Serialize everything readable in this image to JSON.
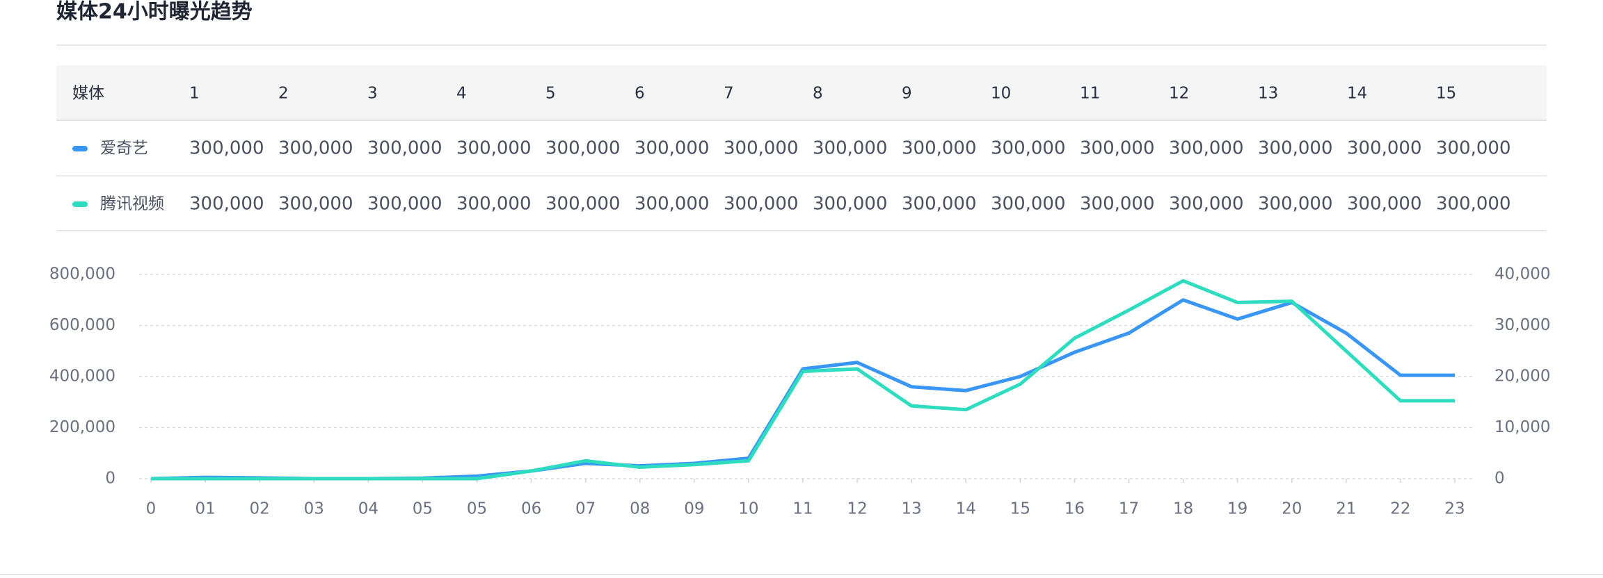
{
  "title": "媒体24小时曝光趋势",
  "table": {
    "header": [
      "媒体",
      "1",
      "2",
      "3",
      "4",
      "5",
      "6",
      "7",
      "8",
      "9",
      "10",
      "11",
      "12",
      "13",
      "14",
      "15"
    ],
    "rows": [
      [
        "爱奇艺",
        "300,000",
        "300,000",
        "300,000",
        "300,000",
        "300,000",
        "300,000",
        "300,000",
        "300,000",
        "300,000",
        "300,000",
        "300,000",
        "300,000",
        "300,000",
        "300,000",
        "300,000"
      ],
      [
        "腾讯视频",
        "300,000",
        "300,000",
        "300,000",
        "300,000",
        "300,000",
        "300,000",
        "300,000",
        "300,000",
        "300,000",
        "300,000",
        "300,000",
        "300,000",
        "300,000",
        "300,000",
        "300,000"
      ]
    ]
  },
  "chart_data": {
    "type": "line",
    "categories": [
      "0",
      "01",
      "02",
      "03",
      "04",
      "05",
      "05",
      "06",
      "07",
      "08",
      "09",
      "10",
      "11",
      "12",
      "13",
      "14",
      "15",
      "16",
      "17",
      "18",
      "19",
      "20",
      "21",
      "22",
      "23"
    ],
    "series": [
      {
        "name": "爱奇艺",
        "color": "#3a96f5",
        "values": [
          0,
          5000,
          3000,
          0,
          0,
          2000,
          10000,
          30000,
          60000,
          50000,
          60000,
          80000,
          430000,
          455000,
          360000,
          345000,
          400000,
          495000,
          570000,
          700000,
          625000,
          690000,
          570000,
          405000,
          405000
        ]
      },
      {
        "name": "腾讯视频",
        "color": "#2fdcc0",
        "axis": "y2",
        "values": [
          0,
          0,
          0,
          0,
          0,
          0,
          0,
          1500,
          3500,
          2250,
          2750,
          3500,
          21000,
          21500,
          14250,
          13500,
          18500,
          27500,
          33000,
          38750,
          34500,
          34750,
          25000,
          15250,
          15250
        ]
      }
    ],
    "ylim": [
      0,
      800000
    ],
    "yticks": [
      0,
      {
        "value": 200000,
        "label": "200,000"
      },
      {
        "value": 400000,
        "label": "400,000"
      },
      {
        "value": 600000,
        "label": "600,000"
      },
      {
        "value": 800000,
        "label": "800,000"
      }
    ],
    "y2lim": [
      0,
      40000
    ],
    "y2ticks": [
      0,
      {
        "value": 10000,
        "label": "10,000"
      },
      {
        "value": 20000,
        "label": "20,000"
      },
      {
        "value": 30000,
        "label": "30,000"
      },
      {
        "value": 40000,
        "label": "40,000"
      }
    ],
    "grid": true
  }
}
